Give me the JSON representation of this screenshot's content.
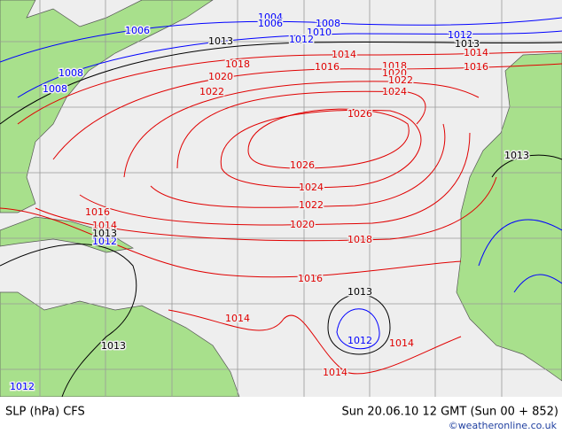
{
  "isobar_labels": [
    {
      "color": "#0000ff",
      "values": [
        1004,
        1006,
        1008,
        1010,
        1012,
        1006,
        1008,
        1008,
        1012,
        1012,
        1012,
        1012
      ]
    },
    {
      "color": "#e00000",
      "values": [
        1014,
        1014,
        1016,
        1016,
        1018,
        1018,
        1020,
        1020,
        1022,
        1022,
        1024,
        1026,
        1026,
        1024,
        1022,
        1020,
        1018,
        1016,
        1016,
        1014,
        1014,
        1014,
        1014
      ]
    },
    {
      "color": "#000000",
      "values": [
        1013,
        1013,
        1013,
        1013,
        1013,
        1013
      ]
    }
  ],
  "footer": {
    "left": "SLP (hPa) CFS",
    "right": "Sun 20.06.10 12 GMT (Sun 00 + 852)",
    "credit": "©weatheronline.co.uk"
  }
}
